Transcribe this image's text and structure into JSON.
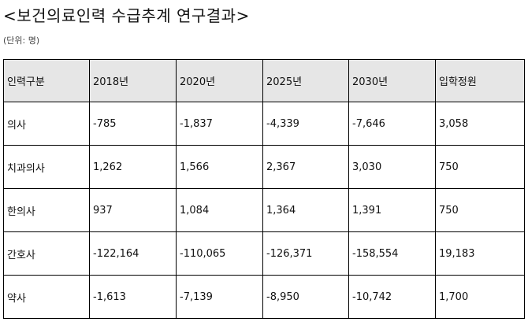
{
  "header": {
    "title": "<보건의료인력 수급추계 연구결과>",
    "unit": "(단위: 명)"
  },
  "table": {
    "columns": [
      "인력구분",
      "2018년",
      "2020년",
      "2025년",
      "2030년",
      "입학정원"
    ],
    "rows": [
      [
        "의사",
        "-785",
        "-1,837",
        "-4,339",
        "-7,646",
        "3,058"
      ],
      [
        "치과의사",
        "1,262",
        "1,566",
        "2,367",
        "3,030",
        "750"
      ],
      [
        "한의사",
        "937",
        "1,084",
        "1,364",
        "1,391",
        "750"
      ],
      [
        "간호사",
        "-122,164",
        "-110,065",
        "-126,371",
        "-158,554",
        "19,183"
      ],
      [
        "약사",
        "-1,613",
        "-7,139",
        "-8,950",
        "-10,742",
        "1,700"
      ]
    ]
  }
}
